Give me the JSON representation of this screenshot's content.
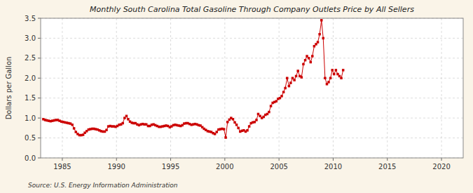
{
  "chart_data": {
    "type": "line",
    "title": "Monthly South Carolina Total Gasoline Through Company Outlets Price by All Sellers",
    "ylabel": "Dollars per Gallon",
    "annotations": [
      "Source: U.S. Energy Information Administration"
    ],
    "color": "#CC0000",
    "marker": "square",
    "grid": true,
    "xlim": [
      1983,
      2022
    ],
    "ylim": [
      0.0,
      3.5
    ],
    "xticks": [
      1985,
      1990,
      1995,
      2000,
      2005,
      2010,
      2015,
      2020
    ],
    "yticks": [
      {
        "value": 0.0,
        "label": "0.0"
      },
      0.5,
      {
        "value": 1.0,
        "label": "1.0"
      },
      1.5,
      {
        "value": 2.0,
        "label": "2.0"
      },
      2.5,
      {
        "value": 3.0,
        "label": "3.0"
      },
      3.5
    ],
    "x": [
      1983.25,
      1983.42,
      1983.58,
      1983.75,
      1983.92,
      1984.08,
      1984.25,
      1984.42,
      1984.58,
      1984.75,
      1984.92,
      1985.08,
      1985.25,
      1985.42,
      1985.58,
      1985.75,
      1985.92,
      1986.08,
      1986.25,
      1986.42,
      1986.58,
      1986.75,
      1986.92,
      1987.08,
      1987.25,
      1987.42,
      1987.58,
      1987.75,
      1987.92,
      1988.08,
      1988.25,
      1988.42,
      1988.58,
      1988.75,
      1988.92,
      1989.08,
      1989.25,
      1989.42,
      1989.58,
      1989.75,
      1989.92,
      1990.08,
      1990.25,
      1990.42,
      1990.58,
      1990.75,
      1990.92,
      1991.08,
      1991.25,
      1991.42,
      1991.58,
      1991.75,
      1991.92,
      1992.08,
      1992.25,
      1992.42,
      1992.58,
      1992.75,
      1992.92,
      1993.08,
      1993.25,
      1993.42,
      1993.58,
      1993.75,
      1993.92,
      1994.08,
      1994.25,
      1994.42,
      1994.58,
      1994.75,
      1994.92,
      1995.08,
      1995.25,
      1995.42,
      1995.58,
      1995.75,
      1995.92,
      1996.08,
      1996.25,
      1996.42,
      1996.58,
      1996.75,
      1996.92,
      1997.08,
      1997.25,
      1997.42,
      1997.58,
      1997.75,
      1997.92,
      1998.08,
      1998.25,
      1998.42,
      1998.58,
      1998.75,
      1998.92,
      1999.08,
      1999.25,
      1999.42,
      1999.58,
      1999.75,
      1999.92,
      2000.08,
      2000.25,
      2000.42,
      2000.58,
      2000.75,
      2000.92,
      2001.08,
      2001.25,
      2001.42,
      2001.58,
      2001.75,
      2001.92,
      2002.08,
      2002.25,
      2002.42,
      2002.58,
      2002.75,
      2002.92,
      2003.08,
      2003.25,
      2003.42,
      2003.58,
      2003.75,
      2003.92,
      2004.08,
      2004.25,
      2004.42,
      2004.58,
      2004.75,
      2004.92,
      2005.08,
      2005.25,
      2005.42,
      2005.58,
      2005.75,
      2005.92,
      2006.08,
      2006.25,
      2006.42,
      2006.58,
      2006.75,
      2006.92,
      2007.08,
      2007.25,
      2007.42,
      2007.58,
      2007.75,
      2007.92,
      2008.08,
      2008.25,
      2008.42,
      2008.58,
      2008.75,
      2008.92,
      2009.08,
      2009.25,
      2009.42,
      2009.58,
      2009.75,
      2009.92,
      2010.08,
      2010.25,
      2010.42,
      2010.58,
      2010.75,
      2010.92
    ],
    "values": [
      0.97,
      0.95,
      0.94,
      0.93,
      0.92,
      0.93,
      0.94,
      0.95,
      0.95,
      0.93,
      0.91,
      0.9,
      0.89,
      0.88,
      0.87,
      0.86,
      0.83,
      0.74,
      0.65,
      0.6,
      0.57,
      0.57,
      0.58,
      0.63,
      0.67,
      0.71,
      0.72,
      0.73,
      0.73,
      0.72,
      0.71,
      0.69,
      0.67,
      0.66,
      0.66,
      0.7,
      0.79,
      0.8,
      0.79,
      0.79,
      0.78,
      0.8,
      0.83,
      0.84,
      0.87,
      1.0,
      1.05,
      0.97,
      0.91,
      0.88,
      0.87,
      0.87,
      0.84,
      0.82,
      0.84,
      0.85,
      0.84,
      0.84,
      0.8,
      0.8,
      0.83,
      0.84,
      0.82,
      0.8,
      0.78,
      0.78,
      0.79,
      0.8,
      0.81,
      0.8,
      0.77,
      0.79,
      0.82,
      0.83,
      0.82,
      0.81,
      0.8,
      0.82,
      0.86,
      0.87,
      0.87,
      0.85,
      0.83,
      0.84,
      0.85,
      0.84,
      0.82,
      0.81,
      0.77,
      0.73,
      0.7,
      0.67,
      0.66,
      0.65,
      0.62,
      0.6,
      0.65,
      0.71,
      0.72,
      0.73,
      0.72,
      0.51,
      0.9,
      0.96,
      1.0,
      0.97,
      0.89,
      0.83,
      0.75,
      0.66,
      0.68,
      0.69,
      0.66,
      0.69,
      0.79,
      0.87,
      0.89,
      0.9,
      0.95,
      1.1,
      1.05,
      1.0,
      1.03,
      1.08,
      1.1,
      1.15,
      1.3,
      1.38,
      1.4,
      1.42,
      1.48,
      1.5,
      1.55,
      1.65,
      1.75,
      2.0,
      1.8,
      1.88,
      2.0,
      1.95,
      2.05,
      2.18,
      2.05,
      2.02,
      2.35,
      2.45,
      2.55,
      2.5,
      2.4,
      2.55,
      2.8,
      2.85,
      2.9,
      3.1,
      3.45,
      3.0,
      2.0,
      1.85,
      1.9,
      2.0,
      2.2,
      2.1,
      2.2,
      2.1,
      2.05,
      2.0,
      2.2
    ]
  }
}
